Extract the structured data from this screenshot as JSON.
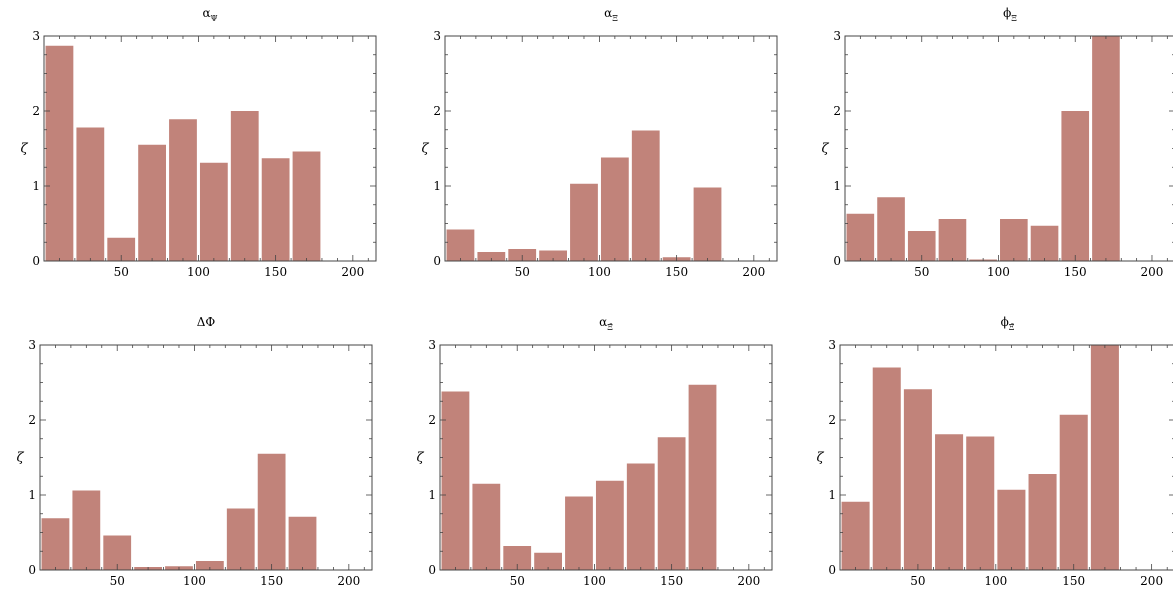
{
  "chart_data": [
    {
      "type": "bar",
      "title": "α_Ψ",
      "ylabel": "ζ",
      "xlabel": "",
      "xlim": [
        0,
        215
      ],
      "ylim": [
        0,
        3
      ],
      "xticks": [
        50,
        100,
        150,
        200
      ],
      "yticks": [
        0,
        1,
        2,
        3
      ],
      "bar_width": 18,
      "x": [
        10,
        30,
        50,
        70,
        90,
        110,
        130,
        150,
        170
      ],
      "values": [
        2.87,
        1.78,
        0.31,
        1.55,
        1.89,
        1.31,
        2.0,
        1.37,
        1.46
      ],
      "color": "#c1837a",
      "grid": false
    },
    {
      "type": "bar",
      "title": "α_Ξ",
      "ylabel": "ζ",
      "xlabel": "",
      "xlim": [
        0,
        215
      ],
      "ylim": [
        0,
        3
      ],
      "xticks": [
        50,
        100,
        150,
        200
      ],
      "yticks": [
        0,
        1,
        2,
        3
      ],
      "bar_width": 18,
      "x": [
        10,
        30,
        50,
        70,
        90,
        110,
        130,
        150,
        170
      ],
      "values": [
        0.42,
        0.12,
        0.16,
        0.14,
        1.03,
        1.38,
        1.74,
        0.05,
        0.98
      ],
      "color": "#c1837a",
      "grid": false
    },
    {
      "type": "bar",
      "title": "ϕ_Ξ",
      "ylabel": "ζ",
      "xlabel": "",
      "xlim": [
        0,
        215
      ],
      "ylim": [
        0,
        3
      ],
      "xticks": [
        50,
        100,
        150,
        200
      ],
      "yticks": [
        0,
        1,
        2,
        3
      ],
      "bar_width": 18,
      "x": [
        10,
        30,
        50,
        70,
        90,
        110,
        130,
        150,
        170
      ],
      "values": [
        0.63,
        0.85,
        0.4,
        0.56,
        0.02,
        0.56,
        0.47,
        2.0,
        3.0
      ],
      "color": "#c1837a",
      "grid": false
    },
    {
      "type": "bar",
      "title": "ΔΦ",
      "ylabel": "ζ",
      "xlabel": "",
      "xlim": [
        0,
        215
      ],
      "ylim": [
        0,
        3
      ],
      "xticks": [
        50,
        100,
        150,
        200
      ],
      "yticks": [
        0,
        1,
        2,
        3
      ],
      "bar_width": 18,
      "x": [
        10,
        30,
        50,
        70,
        90,
        110,
        130,
        150,
        170
      ],
      "values": [
        0.69,
        1.06,
        0.46,
        0.04,
        0.05,
        0.12,
        0.82,
        1.55,
        0.71
      ],
      "color": "#c1837a",
      "grid": false
    },
    {
      "type": "bar",
      "title": "α_Ξ̄",
      "ylabel": "ζ",
      "xlabel": "",
      "xlim": [
        0,
        215
      ],
      "ylim": [
        0,
        3
      ],
      "xticks": [
        50,
        100,
        150,
        200
      ],
      "yticks": [
        0,
        1,
        2,
        3
      ],
      "bar_width": 18,
      "x": [
        10,
        30,
        50,
        70,
        90,
        110,
        130,
        150,
        170
      ],
      "values": [
        2.38,
        1.15,
        0.32,
        0.23,
        0.98,
        1.19,
        1.42,
        1.77,
        2.47
      ],
      "color": "#c1837a",
      "grid": false
    },
    {
      "type": "bar",
      "title": "ϕ_Ξ̄",
      "ylabel": "ζ",
      "xlabel": "",
      "xlim": [
        0,
        215
      ],
      "ylim": [
        0,
        3
      ],
      "xticks": [
        50,
        100,
        150,
        200
      ],
      "yticks": [
        0,
        1,
        2,
        3
      ],
      "bar_width": 18,
      "x": [
        10,
        30,
        50,
        70,
        90,
        110,
        130,
        150,
        170
      ],
      "values": [
        0.91,
        2.7,
        2.41,
        1.81,
        1.78,
        1.07,
        1.28,
        2.07,
        3.0
      ],
      "color": "#c1837a",
      "grid": false
    }
  ]
}
